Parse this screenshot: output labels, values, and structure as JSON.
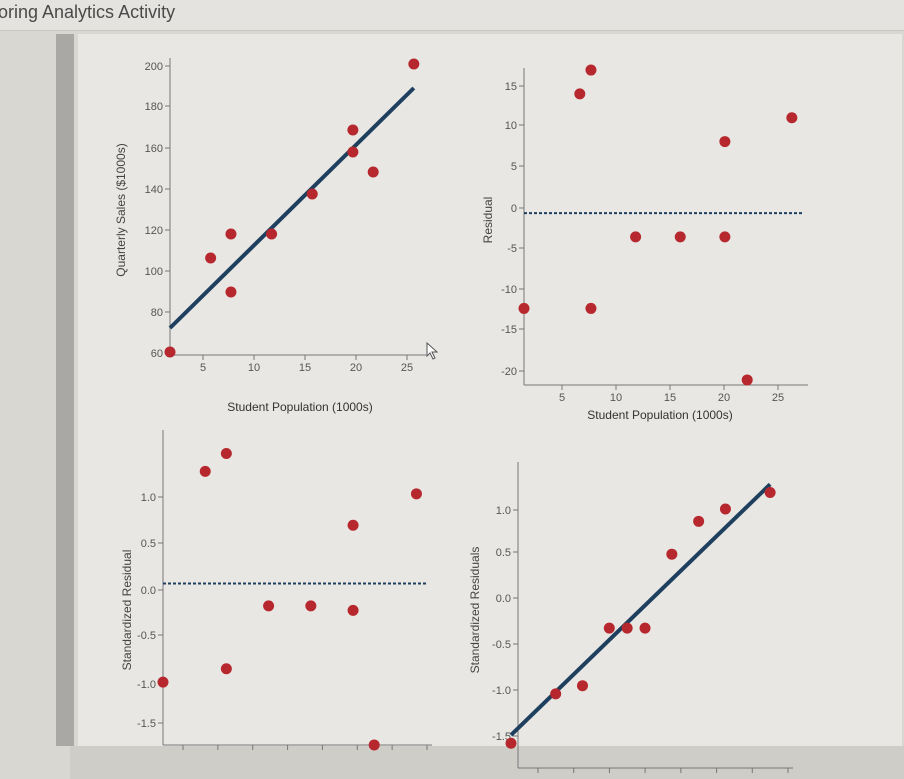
{
  "window": {
    "title": "oring Analytics Activity"
  },
  "chart_data": [
    {
      "type": "scatter",
      "xlabel": "Student Population (1000s)",
      "ylabel": "Quarterly Sales ($1000s)",
      "xlim": [
        2,
        27
      ],
      "ylim": [
        60,
        200
      ],
      "xticks": [
        "5",
        "10",
        "15",
        "20",
        "25"
      ],
      "yticks": [
        "60",
        "80",
        "100",
        "120",
        "140",
        "160",
        "180",
        "200"
      ],
      "points": [
        [
          2,
          58
        ],
        [
          6,
          105
        ],
        [
          8,
          117
        ],
        [
          8,
          88
        ],
        [
          12,
          117
        ],
        [
          16,
          137
        ],
        [
          20,
          158
        ],
        [
          20,
          169
        ],
        [
          22,
          148
        ],
        [
          26,
          202
        ]
      ],
      "line": [
        [
          2,
          70
        ],
        [
          26,
          190
        ]
      ],
      "colors": {
        "points": "#b7282e",
        "line": "#1f3f5e"
      }
    },
    {
      "type": "scatter",
      "xlabel": "Student Population (1000s)",
      "ylabel": "Residual",
      "xlim": [
        2,
        27
      ],
      "ylim": [
        -20,
        17
      ],
      "xticks": [
        "5",
        "10",
        "15",
        "20",
        "25"
      ],
      "yticks": [
        "-20",
        "-15",
        "-10",
        "-5",
        "0",
        "5",
        "10",
        "15"
      ],
      "points": [
        [
          2,
          -12
        ],
        [
          7,
          15
        ],
        [
          8,
          -12
        ],
        [
          8,
          18
        ],
        [
          12,
          -3
        ],
        [
          16,
          -3
        ],
        [
          20,
          -3
        ],
        [
          20,
          9
        ],
        [
          22,
          -21
        ],
        [
          26,
          12
        ]
      ],
      "refline": 0,
      "colors": {
        "points": "#b7282e",
        "line": "#1f3f5e"
      }
    },
    {
      "type": "scatter",
      "xlabel": "",
      "ylabel": "Standardized Residual",
      "xlim": [
        2,
        27
      ],
      "ylim": [
        -1.6,
        1.6
      ],
      "xticks": [],
      "yticks": [
        "-1.5",
        "-1.0",
        "-0.5",
        "0.0",
        "0.5",
        "1.0"
      ],
      "points": [
        [
          2,
          -1.1
        ],
        [
          6,
          1.25
        ],
        [
          8,
          1.45
        ],
        [
          8,
          -0.95
        ],
        [
          12,
          -0.25
        ],
        [
          16,
          -0.25
        ],
        [
          20,
          -0.3
        ],
        [
          20,
          0.65
        ],
        [
          22,
          -1.8
        ],
        [
          26,
          1.0
        ]
      ],
      "refline": 0,
      "colors": {
        "points": "#b7282e",
        "line": "#1f3f5e"
      }
    },
    {
      "type": "scatter",
      "xlabel": "",
      "ylabel": "Standardized Residuals",
      "xlim": [
        -1.6,
        1.5
      ],
      "ylim": [
        -1.6,
        1.6
      ],
      "xticks": [],
      "yticks": [
        "-1.5",
        "-1.0",
        "-0.5",
        "0.0",
        "0.5",
        "1.0"
      ],
      "points": [
        [
          -1.6,
          -1.7
        ],
        [
          -1.1,
          -1.1
        ],
        [
          -0.8,
          -1.0
        ],
        [
          -0.5,
          -0.3
        ],
        [
          -0.3,
          -0.3
        ],
        [
          -0.1,
          -0.3
        ],
        [
          0.2,
          0.6
        ],
        [
          0.5,
          1.0
        ],
        [
          0.8,
          1.15
        ],
        [
          1.3,
          1.35
        ]
      ],
      "line": [
        [
          -1.6,
          -1.6
        ],
        [
          1.3,
          1.45
        ]
      ],
      "colors": {
        "points": "#b7282e",
        "line": "#1f3f5e"
      }
    }
  ]
}
